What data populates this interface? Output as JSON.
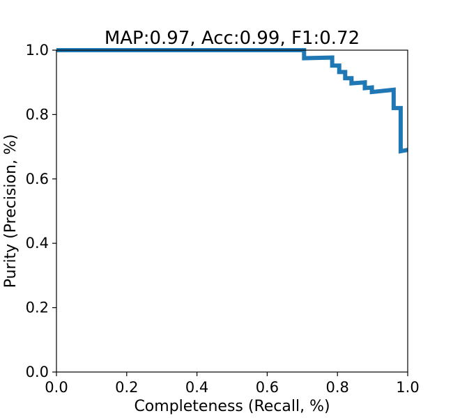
{
  "chart_data": {
    "type": "line",
    "title": "MAP:0.97, Acc:0.99, F1:0.72",
    "xlabel": "Completeness (Recall, %)",
    "ylabel": "Purity (Precision, %)",
    "xlim": [
      0.0,
      1.0
    ],
    "ylim": [
      0.0,
      1.0
    ],
    "xticks": [
      "0.0",
      "0.2",
      "0.4",
      "0.6",
      "0.8",
      "1.0"
    ],
    "yticks": [
      "0.0",
      "0.2",
      "0.4",
      "0.6",
      "0.8",
      "1.0"
    ],
    "grid": false,
    "line_color": "#1f77b4",
    "series": [
      {
        "x": [
          0.0,
          0.705,
          0.705,
          0.785,
          0.785,
          0.805,
          0.805,
          0.822,
          0.822,
          0.84,
          0.84,
          0.878,
          0.878,
          0.898,
          0.898,
          0.96,
          0.96,
          0.98,
          0.98,
          1.0
        ],
        "y": [
          1.0,
          1.0,
          0.975,
          0.977,
          0.952,
          0.952,
          0.932,
          0.932,
          0.913,
          0.913,
          0.897,
          0.9,
          0.882,
          0.884,
          0.87,
          0.877,
          0.82,
          0.82,
          0.686,
          0.69
        ]
      }
    ]
  }
}
